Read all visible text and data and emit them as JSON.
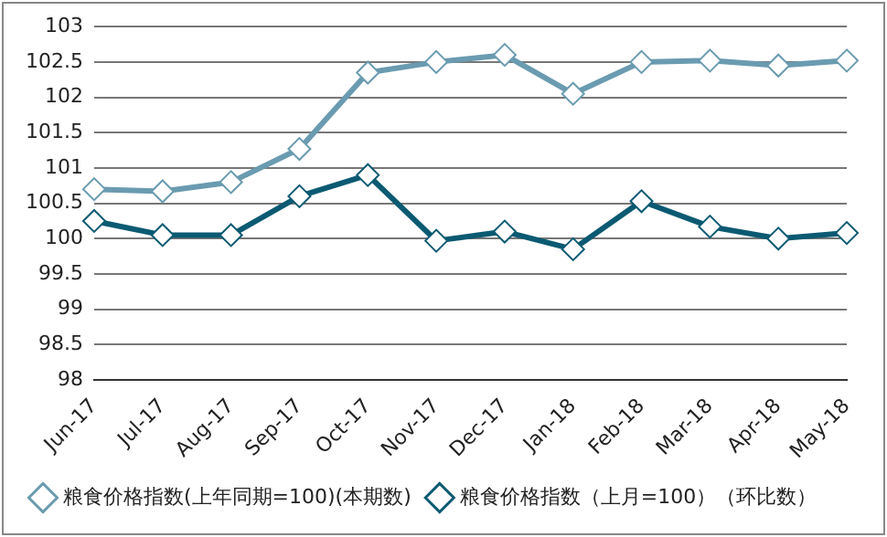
{
  "chart_data": {
    "type": "line",
    "categories": [
      "Jun-17",
      "Jul-17",
      "Aug-17",
      "Sep-17",
      "Oct-17",
      "Nov-17",
      "Dec-17",
      "Jan-18",
      "Feb-18",
      "Mar-18",
      "Apr-18",
      "May-18"
    ],
    "series": [
      {
        "name": "粮食价格指数(上年同期=100)(本期数)",
        "color": "#6a9bb0",
        "values": [
          100.7,
          100.67,
          100.8,
          101.27,
          102.35,
          102.5,
          102.6,
          102.05,
          102.5,
          102.52,
          102.45,
          102.52
        ]
      },
      {
        "name": "粮食价格指数（上月=100）（环比数）",
        "color": "#0b5a72",
        "values": [
          100.25,
          100.05,
          100.05,
          100.6,
          100.9,
          99.97,
          100.1,
          99.85,
          100.53,
          100.17,
          100.0,
          100.08
        ]
      }
    ],
    "ylim": [
      98,
      103
    ],
    "yticks": [
      98,
      98.5,
      99,
      99.5,
      100,
      100.5,
      101,
      101.5,
      102,
      102.5,
      103
    ],
    "grid": "y",
    "legend": "bottom",
    "marker": "diamond",
    "line_style": "solid"
  }
}
